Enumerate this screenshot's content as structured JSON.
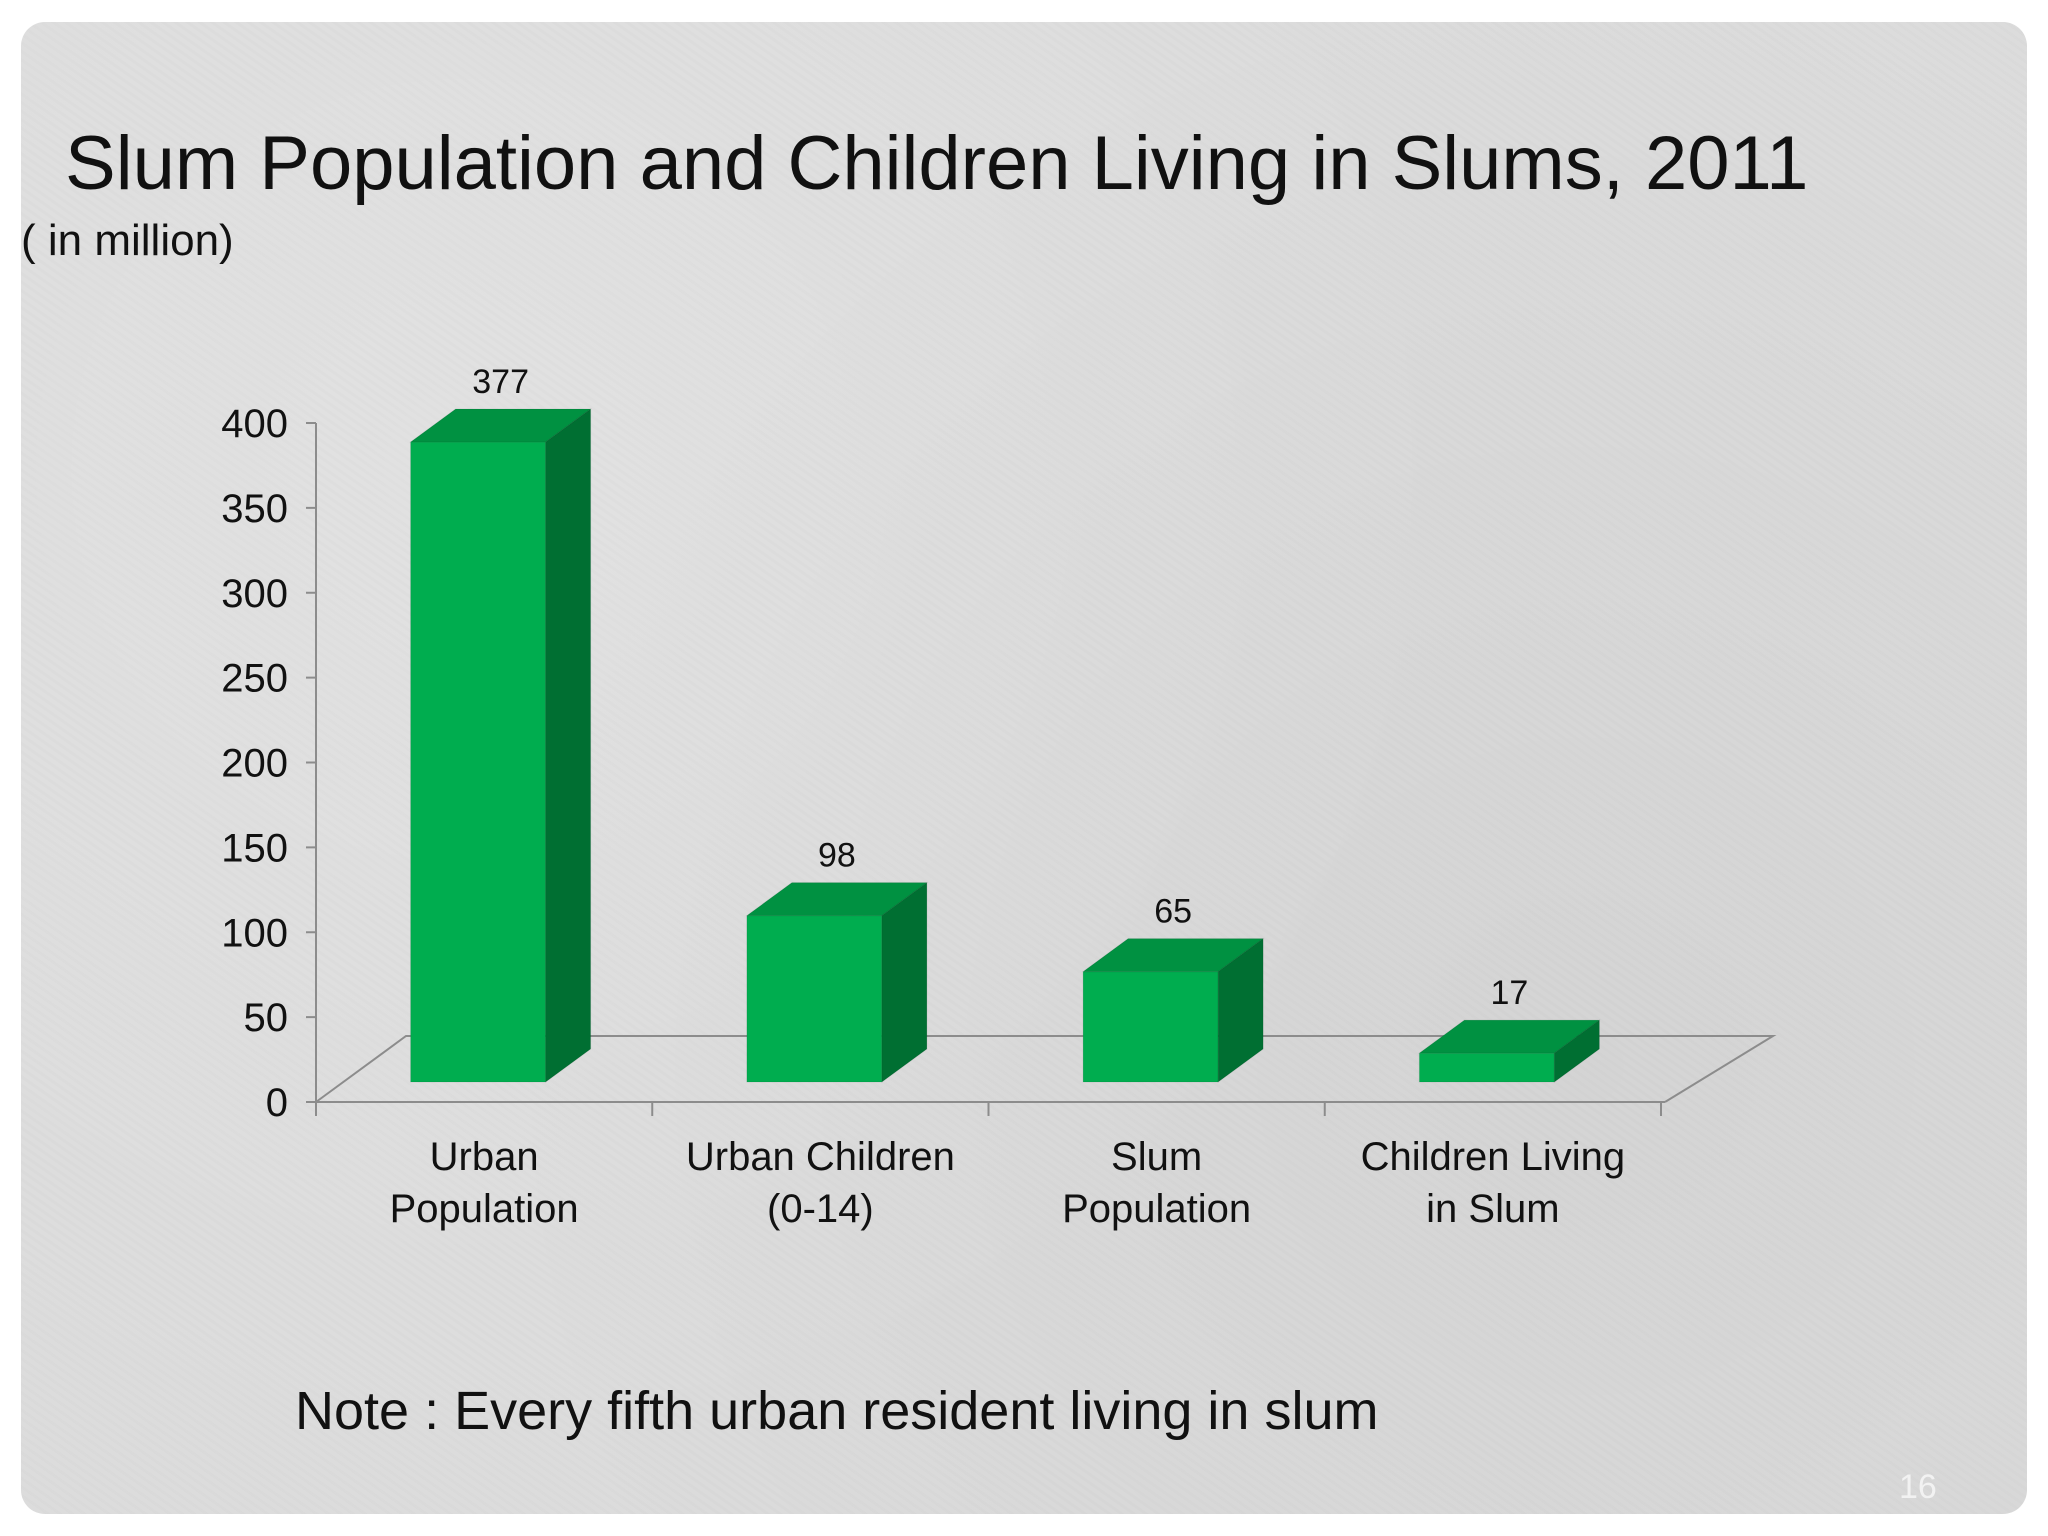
{
  "slide": {
    "title": "Slum Population and Children Living in Slums, 2011",
    "subtitle": "( in million)",
    "note": "Note : Every fifth urban resident living in slum",
    "page_number": "16"
  },
  "colors": {
    "background": "#dcdcdc",
    "bar_front": "#00ad4f",
    "bar_top": "#009141",
    "bar_side": "#006f32",
    "text": "#111111"
  },
  "chart_data": {
    "type": "bar",
    "categories": [
      "Urban\nPopulation",
      "Urban Children\n(0-14)",
      "Slum\nPopulation",
      "Children Living\nin Slum"
    ],
    "values": [
      377,
      98,
      65,
      17
    ],
    "value_labels": [
      "377",
      "98",
      "65",
      "17"
    ],
    "yticks": [
      0,
      50,
      100,
      150,
      200,
      250,
      300,
      350,
      400
    ],
    "ylim": [
      0,
      400
    ],
    "grid": false,
    "legend": "none",
    "style": "3d-column"
  }
}
